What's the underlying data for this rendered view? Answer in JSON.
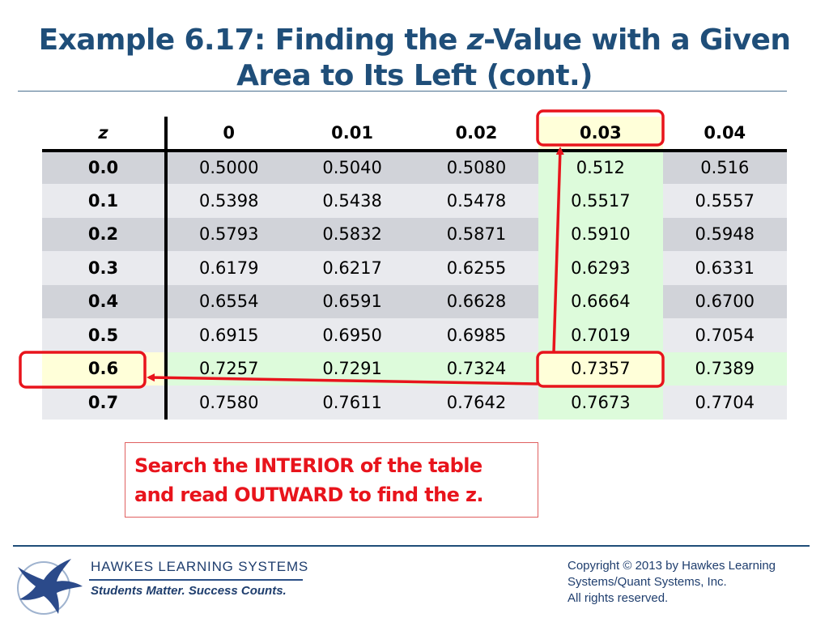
{
  "slide": {
    "title_line1": "Example 6.17: Finding the ",
    "title_z": "z",
    "title_line1_rest": "-Value with a Given",
    "title_line2": "Area to Its Left (cont.)"
  },
  "table": {
    "z_header": "z",
    "columns": [
      "0",
      "0.01",
      "0.02",
      "0.03",
      "0.04"
    ],
    "rows": [
      {
        "z": "0.0",
        "values": [
          "0.5000",
          "0.5040",
          "0.5080",
          "0.512",
          "0.516"
        ]
      },
      {
        "z": "0.1",
        "values": [
          "0.5398",
          "0.5438",
          "0.5478",
          "0.5517",
          "0.5557"
        ]
      },
      {
        "z": "0.2",
        "values": [
          "0.5793",
          "0.5832",
          "0.5871",
          "0.5910",
          "0.5948"
        ]
      },
      {
        "z": "0.3",
        "values": [
          "0.6179",
          "0.6217",
          "0.6255",
          "0.6293",
          "0.6331"
        ]
      },
      {
        "z": "0.4",
        "values": [
          "0.6554",
          "0.6591",
          "0.6628",
          "0.6664",
          "0.6700"
        ]
      },
      {
        "z": "0.5",
        "values": [
          "0.6915",
          "0.6950",
          "0.6985",
          "0.7019",
          "0.7054"
        ]
      },
      {
        "z": "0.6",
        "values": [
          "0.7257",
          "0.7291",
          "0.7324",
          "0.7357",
          "0.7389"
        ]
      },
      {
        "z": "0.7",
        "values": [
          "0.7580",
          "0.7611",
          "0.7642",
          "0.7673",
          "0.7704"
        ]
      }
    ],
    "highlight_column_index": 3,
    "highlight_row_index": 6,
    "colors": {
      "row_dark": "#d1d3d9",
      "row_light": "#e9eaee",
      "highlight_green": "#ddfbdb",
      "highlight_yellow": "#ffffd9",
      "annotation_red": "#e8141c"
    }
  },
  "callout": {
    "line1": "Search the INTERIOR of the table",
    "line2": "and read OUTWARD to find the z."
  },
  "footer": {
    "brand": "HAWKES LEARNING SYSTEMS",
    "tagline": "Students Matter. Success Counts.",
    "copyright_line1": "Copyright © 2013 by Hawkes Learning",
    "copyright_line2": "Systems/Quant Systems, Inc.",
    "copyright_line3": "All rights reserved.",
    "logo_icon": "eagle-logo-icon"
  }
}
